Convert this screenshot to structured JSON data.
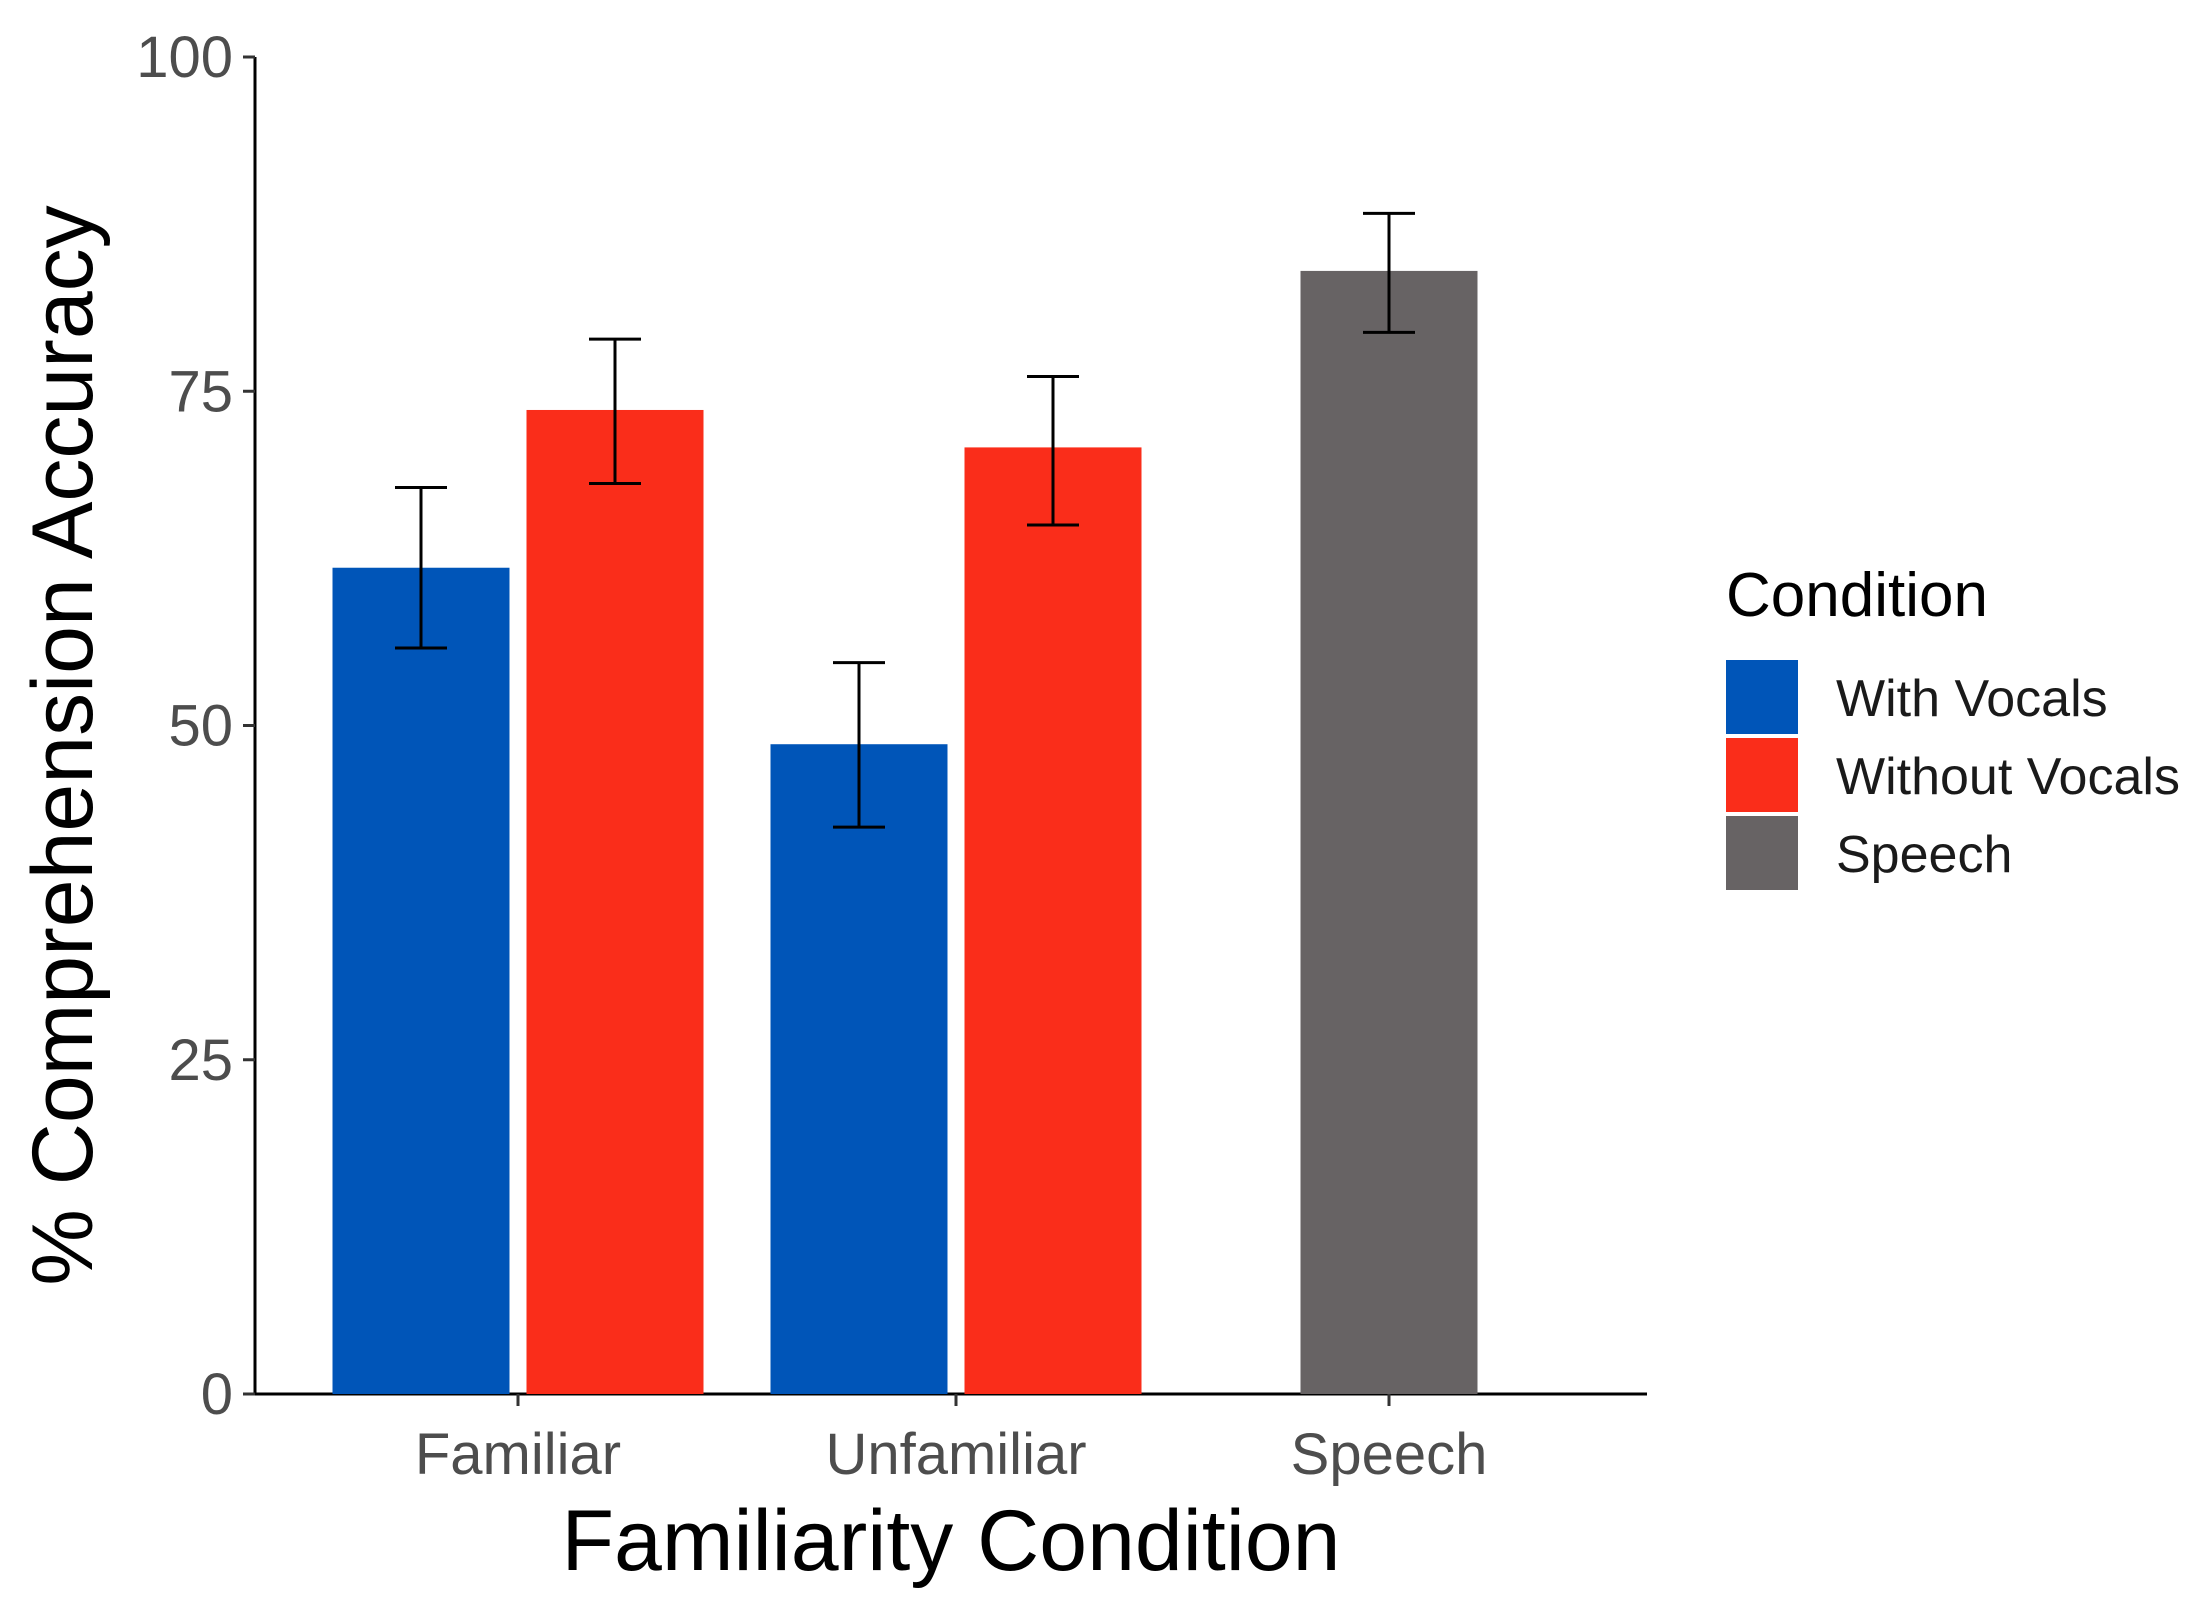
{
  "chart_data": {
    "type": "bar",
    "title": "",
    "xlabel": "Familiarity Condition",
    "ylabel": "% Comprehension Accuracy",
    "ylim": [
      0,
      100
    ],
    "yticks": [
      0,
      25,
      50,
      75,
      100
    ],
    "categories": [
      "Familiar",
      "Unfamiliar",
      "Speech"
    ],
    "series": [
      {
        "name": "With Vocals",
        "color": "#0055b8",
        "values": [
          61.8,
          48.6,
          null
        ],
        "err_low": [
          55.8,
          42.4,
          null
        ],
        "err_high": [
          67.8,
          54.7,
          null
        ]
      },
      {
        "name": "Without Vocals",
        "color": "#fa2d1a",
        "values": [
          73.6,
          70.8,
          null
        ],
        "err_low": [
          68.1,
          65.0,
          null
        ],
        "err_high": [
          78.9,
          76.1,
          null
        ]
      },
      {
        "name": "Speech",
        "color": "#676364",
        "values": [
          null,
          null,
          84.0
        ],
        "err_low": [
          null,
          null,
          79.4
        ],
        "err_high": [
          null,
          null,
          88.3
        ]
      }
    ],
    "legend": {
      "title": "Condition",
      "position": "right",
      "items": [
        "With Vocals",
        "Without Vocals",
        "Speech"
      ]
    },
    "grid": false
  }
}
